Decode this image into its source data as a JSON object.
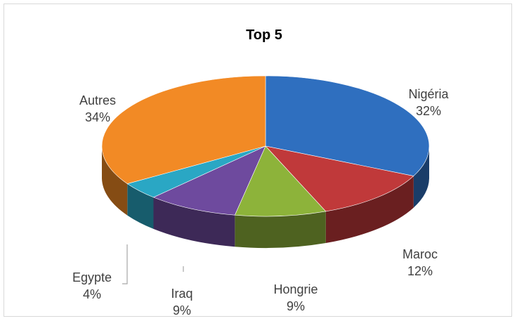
{
  "chart_data": {
    "type": "pie",
    "title": "Top 5",
    "slices": [
      {
        "label": "Nigéria",
        "value": 32,
        "pct": "32%",
        "color": "#2f6fbf"
      },
      {
        "label": "Maroc",
        "value": 12,
        "pct": "12%",
        "color": "#c0393a"
      },
      {
        "label": "Hongrie",
        "value": 9,
        "pct": "9%",
        "color": "#8db33a"
      },
      {
        "label": "Iraq",
        "value": 9,
        "pct": "9%",
        "color": "#6e4a9e"
      },
      {
        "label": "Egypte",
        "value": 4,
        "pct": "4%",
        "color": "#2aa7c4"
      },
      {
        "label": "Autres",
        "value": 34,
        "pct": "34%",
        "color": "#f28a25"
      }
    ],
    "legend": "none",
    "style": "3d"
  }
}
